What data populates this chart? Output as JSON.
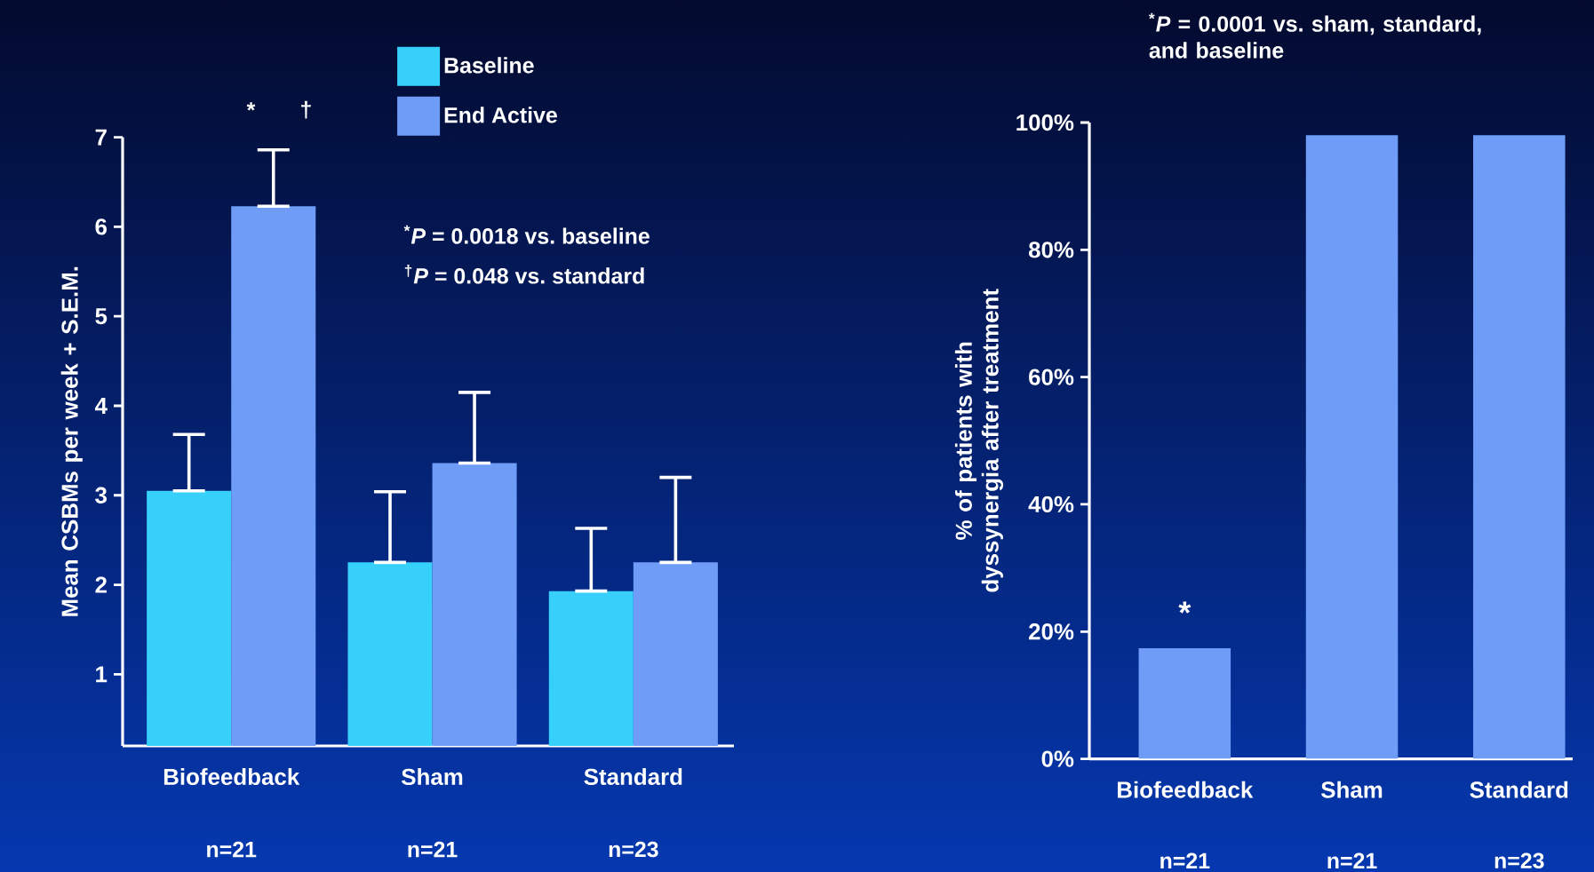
{
  "chart_data": [
    {
      "type": "bar",
      "ylabel": "Mean CSBMs per week + S.E.M.",
      "categories": [
        "Biofeedback",
        "Sham",
        "Standard"
      ],
      "series": [
        {
          "name": "Baseline",
          "color": "#36d0fa",
          "values": [
            3.05,
            2.25,
            1.93
          ],
          "errors": [
            [
              3.05,
              3.68
            ],
            [
              2.25,
              3.04
            ],
            [
              1.93,
              2.63
            ]
          ]
        },
        {
          "name": "End Active",
          "color": "#6e9cf7",
          "values": [
            6.23,
            3.36,
            2.25
          ],
          "errors": [
            [
              6.23,
              6.86
            ],
            [
              3.36,
              4.15
            ],
            [
              2.25,
              3.2
            ]
          ]
        }
      ],
      "ylim": [
        0.2,
        7
      ],
      "yticks": [
        1,
        2,
        3,
        4,
        5,
        6,
        7
      ],
      "legend": "top",
      "annotations": [
        "*",
        "†",
        "$^{*}$*P* = 0.0018 vs. baseline",
        "$^{†}$*P* = 0.048 vs. standard",
        "n=21",
        "n=21",
        "n=23"
      ]
    },
    {
      "type": "bar",
      "title": "$^{*}$*P* = 0.0001 vs. sham, standard, and baseline",
      "ylabel": "% of patients with dyssynergia after treatment",
      "categories": [
        "Biofeedback",
        "Sham",
        "Standard"
      ],
      "series": [
        {
          "color": "#6e9cf7",
          "values": [
            17.4,
            98,
            98
          ]
        }
      ],
      "ylim": [
        0,
        100
      ],
      "yticks": [
        {
          "value": 0,
          "label": "0%"
        },
        {
          "value": 20,
          "label": "20%"
        },
        {
          "value": 40,
          "label": "40%"
        },
        {
          "value": 60,
          "label": "60%"
        },
        {
          "value": 80,
          "label": "80%"
        },
        {
          "value": 100,
          "label": "100%"
        }
      ],
      "annotations": [
        "*",
        "n=21",
        "n=21",
        "n=23"
      ]
    }
  ]
}
